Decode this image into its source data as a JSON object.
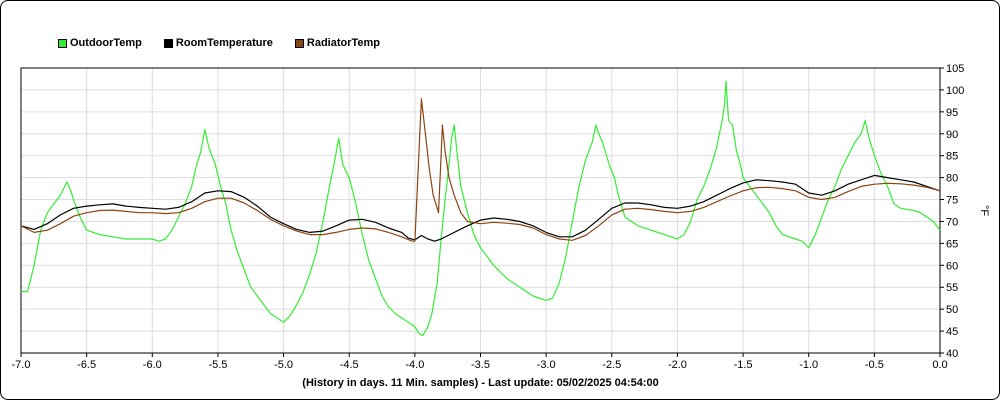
{
  "chart_data": {
    "type": "line",
    "caption": "(History in days. 11 Min. samples) - Last update: 05/02/2025 04:54:00",
    "ylabel": "°F",
    "xlim": [
      -7.0,
      0.0
    ],
    "ylim": [
      40,
      105
    ],
    "x_ticks": [
      "-7.0",
      "-6.5",
      "-6.0",
      "-5.5",
      "-5.0",
      "-4.5",
      "-4.0",
      "-3.5",
      "-3.0",
      "-2.5",
      "-2.0",
      "-1.5",
      "-1.0",
      "-0.5",
      "0.0"
    ],
    "y_ticks": [
      "40",
      "45",
      "50",
      "55",
      "60",
      "65",
      "70",
      "75",
      "80",
      "85",
      "90",
      "95",
      "100",
      "105"
    ],
    "grid": true,
    "legend_position": "top-left",
    "series": [
      {
        "name": "OutdoorTemp",
        "color": "#33ee33",
        "points": [
          [
            -7.0,
            54
          ],
          [
            -6.95,
            54
          ],
          [
            -6.9,
            60
          ],
          [
            -6.85,
            68
          ],
          [
            -6.8,
            72
          ],
          [
            -6.75,
            74
          ],
          [
            -6.7,
            76
          ],
          [
            -6.65,
            79
          ],
          [
            -6.62,
            77
          ],
          [
            -6.6,
            75
          ],
          [
            -6.55,
            71
          ],
          [
            -6.5,
            68
          ],
          [
            -6.45,
            67.5
          ],
          [
            -6.4,
            67
          ],
          [
            -6.3,
            66.5
          ],
          [
            -6.2,
            66
          ],
          [
            -6.1,
            66
          ],
          [
            -6.0,
            66
          ],
          [
            -5.95,
            65.5
          ],
          [
            -5.9,
            66
          ],
          [
            -5.85,
            68
          ],
          [
            -5.8,
            71
          ],
          [
            -5.75,
            74
          ],
          [
            -5.7,
            78
          ],
          [
            -5.67,
            82
          ],
          [
            -5.63,
            86
          ],
          [
            -5.6,
            91
          ],
          [
            -5.57,
            87
          ],
          [
            -5.52,
            83
          ],
          [
            -5.48,
            78
          ],
          [
            -5.44,
            74
          ],
          [
            -5.4,
            68
          ],
          [
            -5.35,
            63
          ],
          [
            -5.3,
            59
          ],
          [
            -5.25,
            55
          ],
          [
            -5.2,
            53
          ],
          [
            -5.15,
            51
          ],
          [
            -5.1,
            49
          ],
          [
            -5.05,
            48
          ],
          [
            -5.0,
            47
          ],
          [
            -4.95,
            48.5
          ],
          [
            -4.9,
            51
          ],
          [
            -4.85,
            54
          ],
          [
            -4.8,
            58
          ],
          [
            -4.75,
            63
          ],
          [
            -4.7,
            70
          ],
          [
            -4.65,
            78
          ],
          [
            -4.61,
            84
          ],
          [
            -4.58,
            89
          ],
          [
            -4.55,
            83
          ],
          [
            -4.5,
            80
          ],
          [
            -4.45,
            74
          ],
          [
            -4.4,
            67
          ],
          [
            -4.35,
            61
          ],
          [
            -4.3,
            57
          ],
          [
            -4.25,
            53
          ],
          [
            -4.2,
            50.5
          ],
          [
            -4.15,
            49
          ],
          [
            -4.1,
            48
          ],
          [
            -4.05,
            47
          ],
          [
            -4.0,
            46
          ],
          [
            -3.97,
            44.5
          ],
          [
            -3.94,
            44
          ],
          [
            -3.9,
            46
          ],
          [
            -3.87,
            49
          ],
          [
            -3.83,
            56
          ],
          [
            -3.8,
            66
          ],
          [
            -3.77,
            75
          ],
          [
            -3.74,
            83
          ],
          [
            -3.72,
            89
          ],
          [
            -3.7,
            92
          ],
          [
            -3.68,
            86
          ],
          [
            -3.65,
            78
          ],
          [
            -3.6,
            72
          ],
          [
            -3.55,
            67
          ],
          [
            -3.5,
            64
          ],
          [
            -3.45,
            62
          ],
          [
            -3.4,
            60
          ],
          [
            -3.3,
            57
          ],
          [
            -3.2,
            55
          ],
          [
            -3.1,
            53
          ],
          [
            -3.0,
            52
          ],
          [
            -2.95,
            52.5
          ],
          [
            -2.9,
            56
          ],
          [
            -2.85,
            62
          ],
          [
            -2.8,
            70
          ],
          [
            -2.75,
            78
          ],
          [
            -2.7,
            84
          ],
          [
            -2.65,
            88
          ],
          [
            -2.62,
            92
          ],
          [
            -2.6,
            90
          ],
          [
            -2.57,
            88
          ],
          [
            -2.52,
            83
          ],
          [
            -2.48,
            80
          ],
          [
            -2.45,
            76
          ],
          [
            -2.4,
            71
          ],
          [
            -2.35,
            70
          ],
          [
            -2.3,
            69
          ],
          [
            -2.2,
            68
          ],
          [
            -2.1,
            67
          ],
          [
            -2.0,
            66
          ],
          [
            -1.95,
            67
          ],
          [
            -1.9,
            70
          ],
          [
            -1.85,
            75
          ],
          [
            -1.8,
            78
          ],
          [
            -1.75,
            82
          ],
          [
            -1.7,
            87
          ],
          [
            -1.68,
            90
          ],
          [
            -1.66,
            93
          ],
          [
            -1.64,
            97
          ],
          [
            -1.63,
            102
          ],
          [
            -1.61,
            93
          ],
          [
            -1.58,
            92
          ],
          [
            -1.55,
            86
          ],
          [
            -1.52,
            83
          ],
          [
            -1.5,
            80
          ],
          [
            -1.45,
            78
          ],
          [
            -1.4,
            76
          ],
          [
            -1.35,
            74
          ],
          [
            -1.3,
            72
          ],
          [
            -1.25,
            69
          ],
          [
            -1.2,
            67
          ],
          [
            -1.1,
            66
          ],
          [
            -1.05,
            65.5
          ],
          [
            -1.0,
            64
          ],
          [
            -0.95,
            67
          ],
          [
            -0.9,
            71
          ],
          [
            -0.85,
            75
          ],
          [
            -0.8,
            78
          ],
          [
            -0.75,
            82
          ],
          [
            -0.7,
            85
          ],
          [
            -0.65,
            88
          ],
          [
            -0.6,
            90
          ],
          [
            -0.57,
            93
          ],
          [
            -0.54,
            89
          ],
          [
            -0.5,
            85
          ],
          [
            -0.45,
            81
          ],
          [
            -0.4,
            78
          ],
          [
            -0.35,
            74
          ],
          [
            -0.3,
            73
          ],
          [
            -0.2,
            72.5
          ],
          [
            -0.15,
            72
          ],
          [
            -0.1,
            71
          ],
          [
            -0.05,
            70
          ],
          [
            0.0,
            68
          ]
        ]
      },
      {
        "name": "RoomTemperature",
        "color": "#000000",
        "points": [
          [
            -7.0,
            69
          ],
          [
            -6.9,
            68.2
          ],
          [
            -6.8,
            69.5
          ],
          [
            -6.7,
            71.5
          ],
          [
            -6.6,
            73
          ],
          [
            -6.5,
            73.5
          ],
          [
            -6.4,
            73.8
          ],
          [
            -6.3,
            74
          ],
          [
            -6.2,
            73.5
          ],
          [
            -6.1,
            73.2
          ],
          [
            -6.0,
            73
          ],
          [
            -5.9,
            72.8
          ],
          [
            -5.8,
            73.2
          ],
          [
            -5.7,
            74.5
          ],
          [
            -5.6,
            76.5
          ],
          [
            -5.5,
            77
          ],
          [
            -5.4,
            76.8
          ],
          [
            -5.3,
            75.5
          ],
          [
            -5.2,
            73.5
          ],
          [
            -5.1,
            71
          ],
          [
            -5.0,
            69.5
          ],
          [
            -4.9,
            68.2
          ],
          [
            -4.8,
            67.5
          ],
          [
            -4.7,
            67.8
          ],
          [
            -4.6,
            69
          ],
          [
            -4.5,
            70.3
          ],
          [
            -4.4,
            70.5
          ],
          [
            -4.3,
            69.8
          ],
          [
            -4.2,
            68.5
          ],
          [
            -4.1,
            67.5
          ],
          [
            -4.05,
            66.2
          ],
          [
            -4.0,
            65.8
          ],
          [
            -3.95,
            66.8
          ],
          [
            -3.9,
            66
          ],
          [
            -3.85,
            65.5
          ],
          [
            -3.8,
            66
          ],
          [
            -3.7,
            67.5
          ],
          [
            -3.6,
            69
          ],
          [
            -3.5,
            70.3
          ],
          [
            -3.4,
            70.8
          ],
          [
            -3.3,
            70.5
          ],
          [
            -3.2,
            70
          ],
          [
            -3.1,
            69
          ],
          [
            -3.0,
            67.5
          ],
          [
            -2.9,
            66.5
          ],
          [
            -2.8,
            66.5
          ],
          [
            -2.7,
            68
          ],
          [
            -2.6,
            70.5
          ],
          [
            -2.5,
            73
          ],
          [
            -2.4,
            74.2
          ],
          [
            -2.3,
            74.2
          ],
          [
            -2.2,
            73.8
          ],
          [
            -2.1,
            73.2
          ],
          [
            -2.0,
            73
          ],
          [
            -1.9,
            73.5
          ],
          [
            -1.8,
            74.5
          ],
          [
            -1.7,
            76
          ],
          [
            -1.6,
            77.5
          ],
          [
            -1.5,
            78.8
          ],
          [
            -1.4,
            79.5
          ],
          [
            -1.3,
            79.3
          ],
          [
            -1.2,
            79
          ],
          [
            -1.1,
            78.5
          ],
          [
            -1.0,
            76.5
          ],
          [
            -0.9,
            76
          ],
          [
            -0.8,
            77
          ],
          [
            -0.7,
            78.5
          ],
          [
            -0.6,
            79.5
          ],
          [
            -0.5,
            80.5
          ],
          [
            -0.4,
            80
          ],
          [
            -0.3,
            79.5
          ],
          [
            -0.2,
            79
          ],
          [
            -0.1,
            78
          ],
          [
            0.0,
            77
          ]
        ]
      },
      {
        "name": "RadiatorTemp",
        "color": "#8b4513",
        "points": [
          [
            -7.0,
            69
          ],
          [
            -6.9,
            67.5
          ],
          [
            -6.8,
            68
          ],
          [
            -6.7,
            69.5
          ],
          [
            -6.6,
            71.2
          ],
          [
            -6.5,
            72
          ],
          [
            -6.4,
            72.5
          ],
          [
            -6.3,
            72.6
          ],
          [
            -6.2,
            72.3
          ],
          [
            -6.1,
            72
          ],
          [
            -6.0,
            72
          ],
          [
            -5.9,
            71.8
          ],
          [
            -5.8,
            72
          ],
          [
            -5.7,
            73
          ],
          [
            -5.6,
            74.5
          ],
          [
            -5.5,
            75.3
          ],
          [
            -5.4,
            75.3
          ],
          [
            -5.3,
            74.2
          ],
          [
            -5.2,
            72.5
          ],
          [
            -5.1,
            70.5
          ],
          [
            -5.0,
            69
          ],
          [
            -4.9,
            67.8
          ],
          [
            -4.8,
            67
          ],
          [
            -4.7,
            67
          ],
          [
            -4.6,
            67.5
          ],
          [
            -4.5,
            68.2
          ],
          [
            -4.4,
            68.5
          ],
          [
            -4.3,
            68.3
          ],
          [
            -4.2,
            67.5
          ],
          [
            -4.1,
            66.5
          ],
          [
            -4.02,
            65.5
          ],
          [
            -4.0,
            65.5
          ],
          [
            -3.97,
            85
          ],
          [
            -3.95,
            98
          ],
          [
            -3.92,
            90
          ],
          [
            -3.89,
            82
          ],
          [
            -3.86,
            76
          ],
          [
            -3.84,
            74
          ],
          [
            -3.82,
            72
          ],
          [
            -3.8,
            85
          ],
          [
            -3.79,
            92
          ],
          [
            -3.77,
            86
          ],
          [
            -3.74,
            80
          ],
          [
            -3.7,
            76
          ],
          [
            -3.65,
            72
          ],
          [
            -3.6,
            70
          ],
          [
            -3.5,
            69.5
          ],
          [
            -3.4,
            69.8
          ],
          [
            -3.3,
            69.6
          ],
          [
            -3.2,
            69.3
          ],
          [
            -3.1,
            68.5
          ],
          [
            -3.0,
            67
          ],
          [
            -2.9,
            66
          ],
          [
            -2.8,
            65.7
          ],
          [
            -2.7,
            66.8
          ],
          [
            -2.6,
            69
          ],
          [
            -2.5,
            71.5
          ],
          [
            -2.4,
            72.8
          ],
          [
            -2.3,
            73
          ],
          [
            -2.2,
            72.7
          ],
          [
            -2.1,
            72.3
          ],
          [
            -2.0,
            72
          ],
          [
            -1.9,
            72.3
          ],
          [
            -1.8,
            73.2
          ],
          [
            -1.7,
            74.5
          ],
          [
            -1.6,
            75.8
          ],
          [
            -1.5,
            77
          ],
          [
            -1.4,
            77.7
          ],
          [
            -1.3,
            77.8
          ],
          [
            -1.2,
            77.5
          ],
          [
            -1.1,
            77
          ],
          [
            -1.0,
            75.5
          ],
          [
            -0.9,
            75
          ],
          [
            -0.8,
            75.5
          ],
          [
            -0.7,
            76.8
          ],
          [
            -0.6,
            78
          ],
          [
            -0.5,
            78.5
          ],
          [
            -0.4,
            78.7
          ],
          [
            -0.3,
            78.6
          ],
          [
            -0.2,
            78.3
          ],
          [
            -0.1,
            77.8
          ],
          [
            0.0,
            77
          ]
        ]
      }
    ]
  }
}
